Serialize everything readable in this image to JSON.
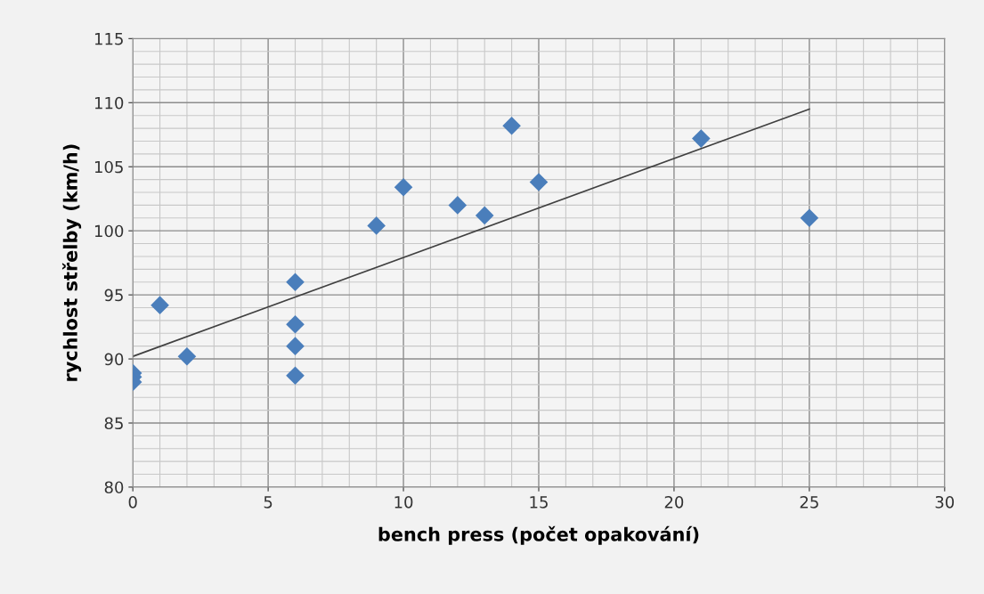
{
  "chart_data": {
    "type": "scatter",
    "xlabel": "bench press (počet opakování)",
    "ylabel": "rychlost střelby (km/h)",
    "series": [
      {
        "marker": "diamond",
        "color": "#4a7ebb",
        "x": [
          0,
          0,
          0,
          1,
          2,
          6,
          6,
          6,
          6,
          9,
          10,
          12,
          13,
          14,
          15,
          21,
          25
        ],
        "values": [
          88.9,
          88.6,
          88.2,
          94.2,
          90.2,
          96.0,
          92.7,
          91.0,
          88.7,
          100.4,
          103.4,
          102.0,
          101.2,
          108.2,
          103.8,
          107.2,
          101.0
        ]
      },
      {
        "type": "line",
        "marker": "none",
        "color": "#404040",
        "x": [
          0,
          25
        ],
        "values": [
          90.2,
          109.5
        ]
      }
    ],
    "xlim": [
      0,
      30
    ],
    "xticks": [
      0,
      5,
      10,
      15,
      20,
      25,
      30
    ],
    "ylim": [
      80,
      115
    ],
    "yticks": [
      80,
      85,
      90,
      95,
      100,
      105,
      110,
      115
    ],
    "grid": true
  }
}
